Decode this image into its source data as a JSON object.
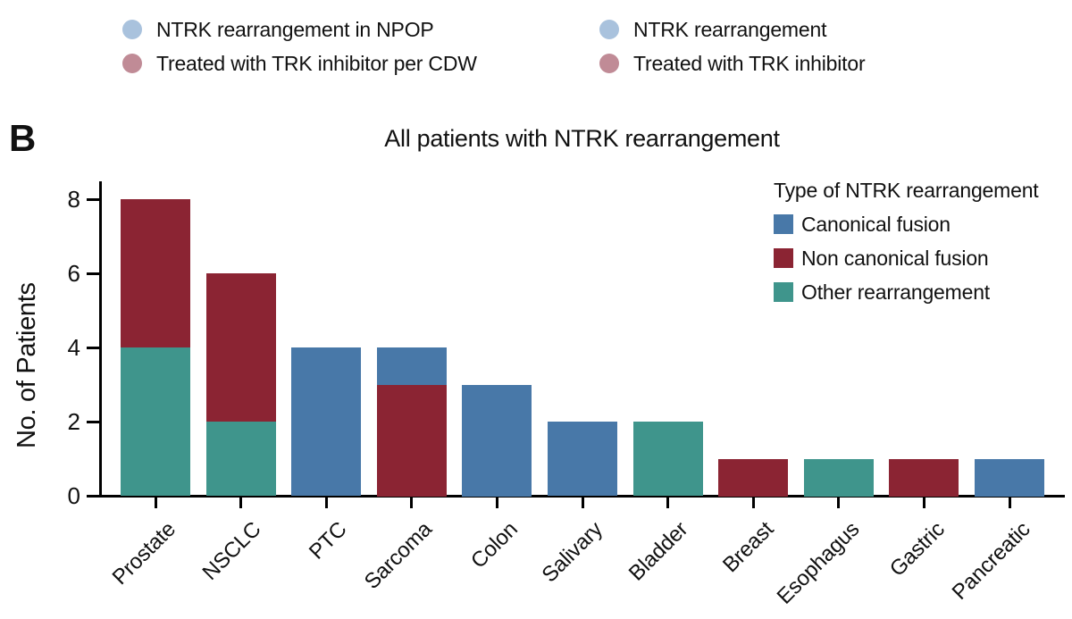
{
  "figure": {
    "panel_label": "B",
    "top_legend": {
      "left_items": [
        {
          "label": "NTRK rearrangement in NPOP",
          "icon": "circle-marker-icon",
          "color": "#a9c2dd"
        },
        {
          "label": "Treated with TRK inhibitor per CDW",
          "icon": "circle-marker-icon",
          "color": "#c08b96"
        }
      ],
      "right_items": [
        {
          "label": "NTRK rearrangement",
          "icon": "circle-marker-icon",
          "color": "#a9c2dd"
        },
        {
          "label": "Treated with TRK inhibitor",
          "icon": "circle-marker-icon",
          "color": "#c08b96"
        }
      ]
    }
  },
  "chart_data": {
    "type": "bar",
    "stacked": true,
    "title": "All patients with NTRK rearrangement",
    "xlabel": "",
    "ylabel": "No. of Patients",
    "ylim": [
      0,
      8.5
    ],
    "yticks": [
      0,
      2,
      4,
      6,
      8
    ],
    "grid": false,
    "legend": {
      "title": "Type of NTRK rearrangement",
      "position": "upper right"
    },
    "categories": [
      "Prostate",
      "NSCLC",
      "PTC",
      "Sarcoma",
      "Colon",
      "Salivary",
      "Bladder",
      "Breast",
      "Esophagus",
      "Gastric",
      "Pancreatic"
    ],
    "series": [
      {
        "name": "Canonical fusion",
        "color": "#4878a8",
        "values": [
          0,
          0,
          4,
          1,
          3,
          2,
          0,
          0,
          0,
          0,
          1
        ]
      },
      {
        "name": "Non canonical fusion",
        "color": "#8b2433",
        "values": [
          4,
          4,
          0,
          3,
          0,
          0,
          0,
          1,
          0,
          1,
          0
        ]
      },
      {
        "name": "Other rearrangement",
        "color": "#3f958c",
        "values": [
          4,
          2,
          0,
          0,
          0,
          0,
          2,
          0,
          1,
          0,
          0
        ]
      }
    ],
    "stack_order_bottom_to_top": [
      "Other rearrangement",
      "Non canonical fusion",
      "Canonical fusion"
    ],
    "totals": [
      8,
      6,
      4,
      4,
      3,
      2,
      2,
      1,
      1,
      1,
      1
    ]
  }
}
